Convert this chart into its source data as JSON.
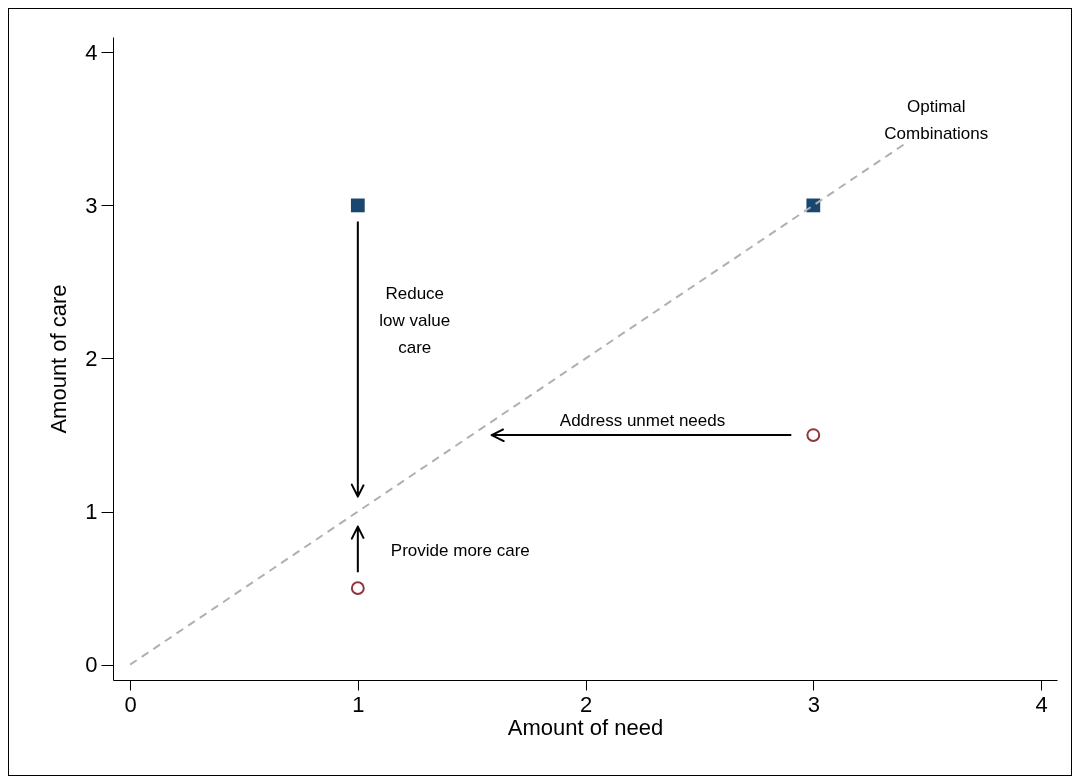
{
  "chart_data": {
    "type": "scatter",
    "xlabel": "Amount of need",
    "ylabel": "Amount of care",
    "xlim": [
      -0.075,
      4.07
    ],
    "ylim": [
      -0.1,
      4.1
    ],
    "xticks": [
      0,
      1,
      2,
      3,
      4
    ],
    "yticks": [
      0,
      1,
      2,
      3,
      4
    ],
    "grid": false,
    "series": [
      {
        "marker": "square",
        "color": "#1a476f",
        "x": [
          1,
          3
        ],
        "values": [
          3,
          3
        ]
      },
      {
        "marker": "circle",
        "color": "#90353b",
        "x": [
          1,
          3
        ],
        "values": [
          0.5,
          1.5
        ]
      },
      {
        "type": "line",
        "marker": "none",
        "line_style": "dashed",
        "color": "#b0b0b0",
        "x": [
          0,
          3.4
        ],
        "values": [
          0,
          3.4
        ]
      }
    ],
    "annotations": [
      "Reduce\nlow value\ncare",
      "Provide more care",
      "Address unmet needs",
      "Optimal\nCombinations"
    ]
  }
}
